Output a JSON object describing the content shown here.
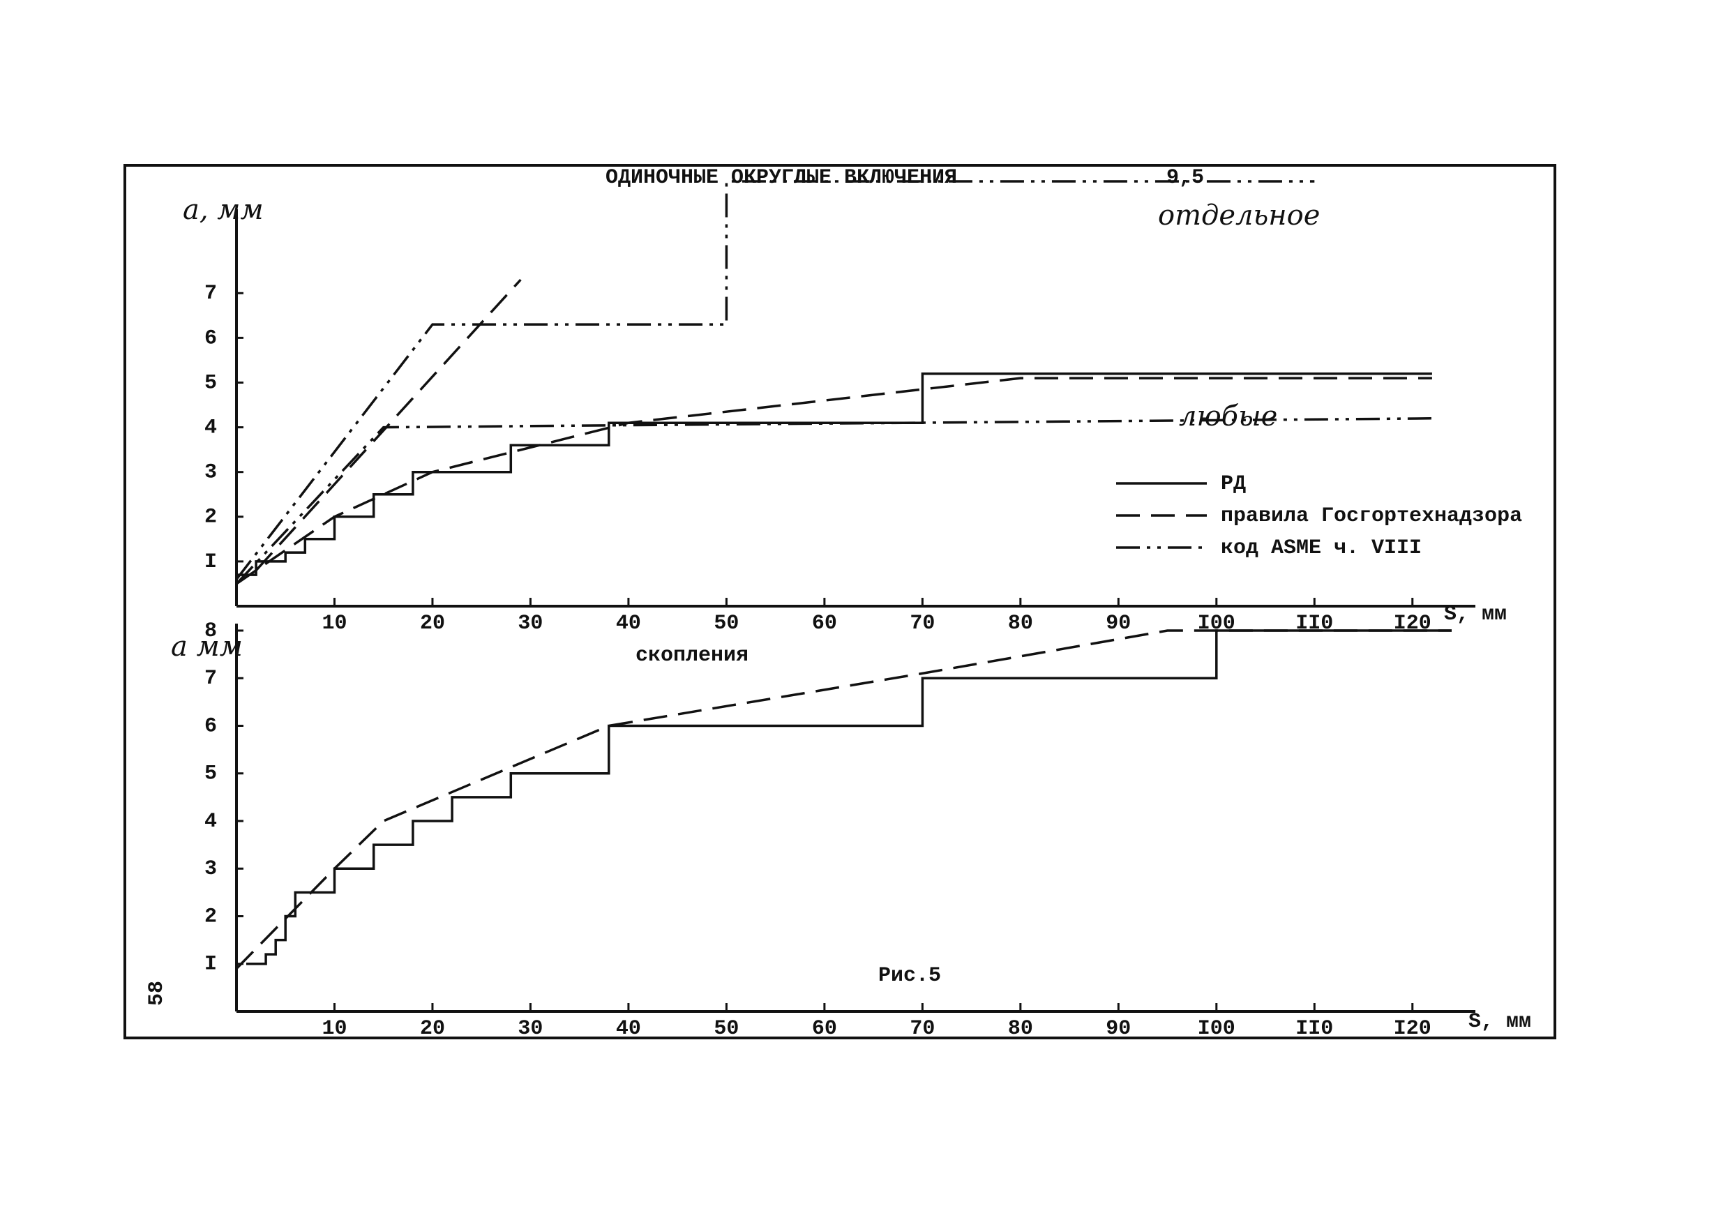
{
  "chart_data": [
    {
      "type": "line",
      "title": "ОДИНОЧНЫЕ ОКРУГЛЫЕ ВКЛЮЧЕНИЯ",
      "y_label": "a, мм",
      "x_label": "S, мм",
      "annotations": [
        "9,5",
        "отдельное",
        "любые"
      ],
      "xlim": [
        0,
        125
      ],
      "ylim": [
        0,
        9.5
      ],
      "xticks": [
        10,
        20,
        30,
        40,
        50,
        60,
        70,
        80,
        90,
        {
          "value": 100,
          "label": "I00"
        },
        {
          "value": 110,
          "label": "II0"
        },
        {
          "value": 120,
          "label": "I20"
        }
      ],
      "yticks": [
        {
          "value": 1,
          "label": "I"
        },
        2,
        3,
        4,
        5,
        6,
        7
      ],
      "legend": "right",
      "series": [
        {
          "name": "РД",
          "color": "#111",
          "dash": "solid",
          "x": [
            0,
            2,
            2,
            5,
            5,
            7,
            7,
            10,
            10,
            14,
            14,
            18,
            18,
            28,
            28,
            38,
            38,
            70,
            70,
            122
          ],
          "values": [
            0.7,
            0.7,
            1,
            1,
            1.2,
            1.2,
            1.5,
            1.5,
            2,
            2,
            2.5,
            2.5,
            3,
            3,
            3.6,
            3.6,
            4.1,
            4.1,
            5.2,
            5.2
          ]
        },
        {
          "name": "правила Госгортехнадзора",
          "color": "#111",
          "dash": "dashed",
          "x": [
            0,
            10,
            20,
            40,
            80,
            122,
            125,
            2,
            29
          ],
          "values": [
            0.5,
            2,
            3,
            4.1,
            5.1,
            5.1,
            null,
            0.8,
            7.3
          ]
        },
        {
          "name": "код ASME ч. VIII",
          "color": "#111",
          "dash": "dashdotdot",
          "x": [
            0,
            20,
            50,
            50,
            110,
            115,
            0,
            15,
            122
          ],
          "values": [
            0.6,
            6.3,
            6.3,
            9.5,
            9.5,
            null,
            0.5,
            4,
            4.2
          ]
        }
      ]
    },
    {
      "type": "line",
      "title": "скопления",
      "y_label": "a мм",
      "x_label": "S, мм",
      "xlim": [
        0,
        125
      ],
      "ylim": [
        0,
        8
      ],
      "xticks": [
        10,
        20,
        30,
        40,
        50,
        60,
        70,
        80,
        90,
        {
          "value": 100,
          "label": "I00"
        },
        {
          "value": 110,
          "label": "II0"
        },
        {
          "value": 120,
          "label": "I20"
        }
      ],
      "yticks": [
        {
          "value": 1,
          "label": "I"
        },
        2,
        3,
        4,
        5,
        6,
        7,
        8
      ],
      "series": [
        {
          "color": "#111",
          "dash": "solid",
          "x": [
            1,
            3,
            3,
            4,
            4,
            5,
            5,
            6,
            6,
            10,
            10,
            14,
            14,
            18,
            18,
            22,
            22,
            28,
            28,
            38,
            38,
            70,
            70,
            100,
            100,
            124
          ],
          "values": [
            1,
            1,
            1.2,
            1.2,
            1.5,
            1.5,
            2,
            2,
            2.5,
            2.5,
            3,
            3,
            3.5,
            3.5,
            4,
            4,
            4.5,
            4.5,
            5,
            5,
            6,
            6,
            7,
            7,
            8,
            8
          ]
        },
        {
          "color": "#111",
          "dash": "dashed",
          "x": [
            0,
            10,
            15,
            38,
            70,
            95,
            124
          ],
          "values": [
            0.9,
            3,
            4,
            6,
            7.1,
            8,
            8
          ]
        }
      ]
    }
  ],
  "figure_caption": "Рис.5",
  "page_number": "58"
}
